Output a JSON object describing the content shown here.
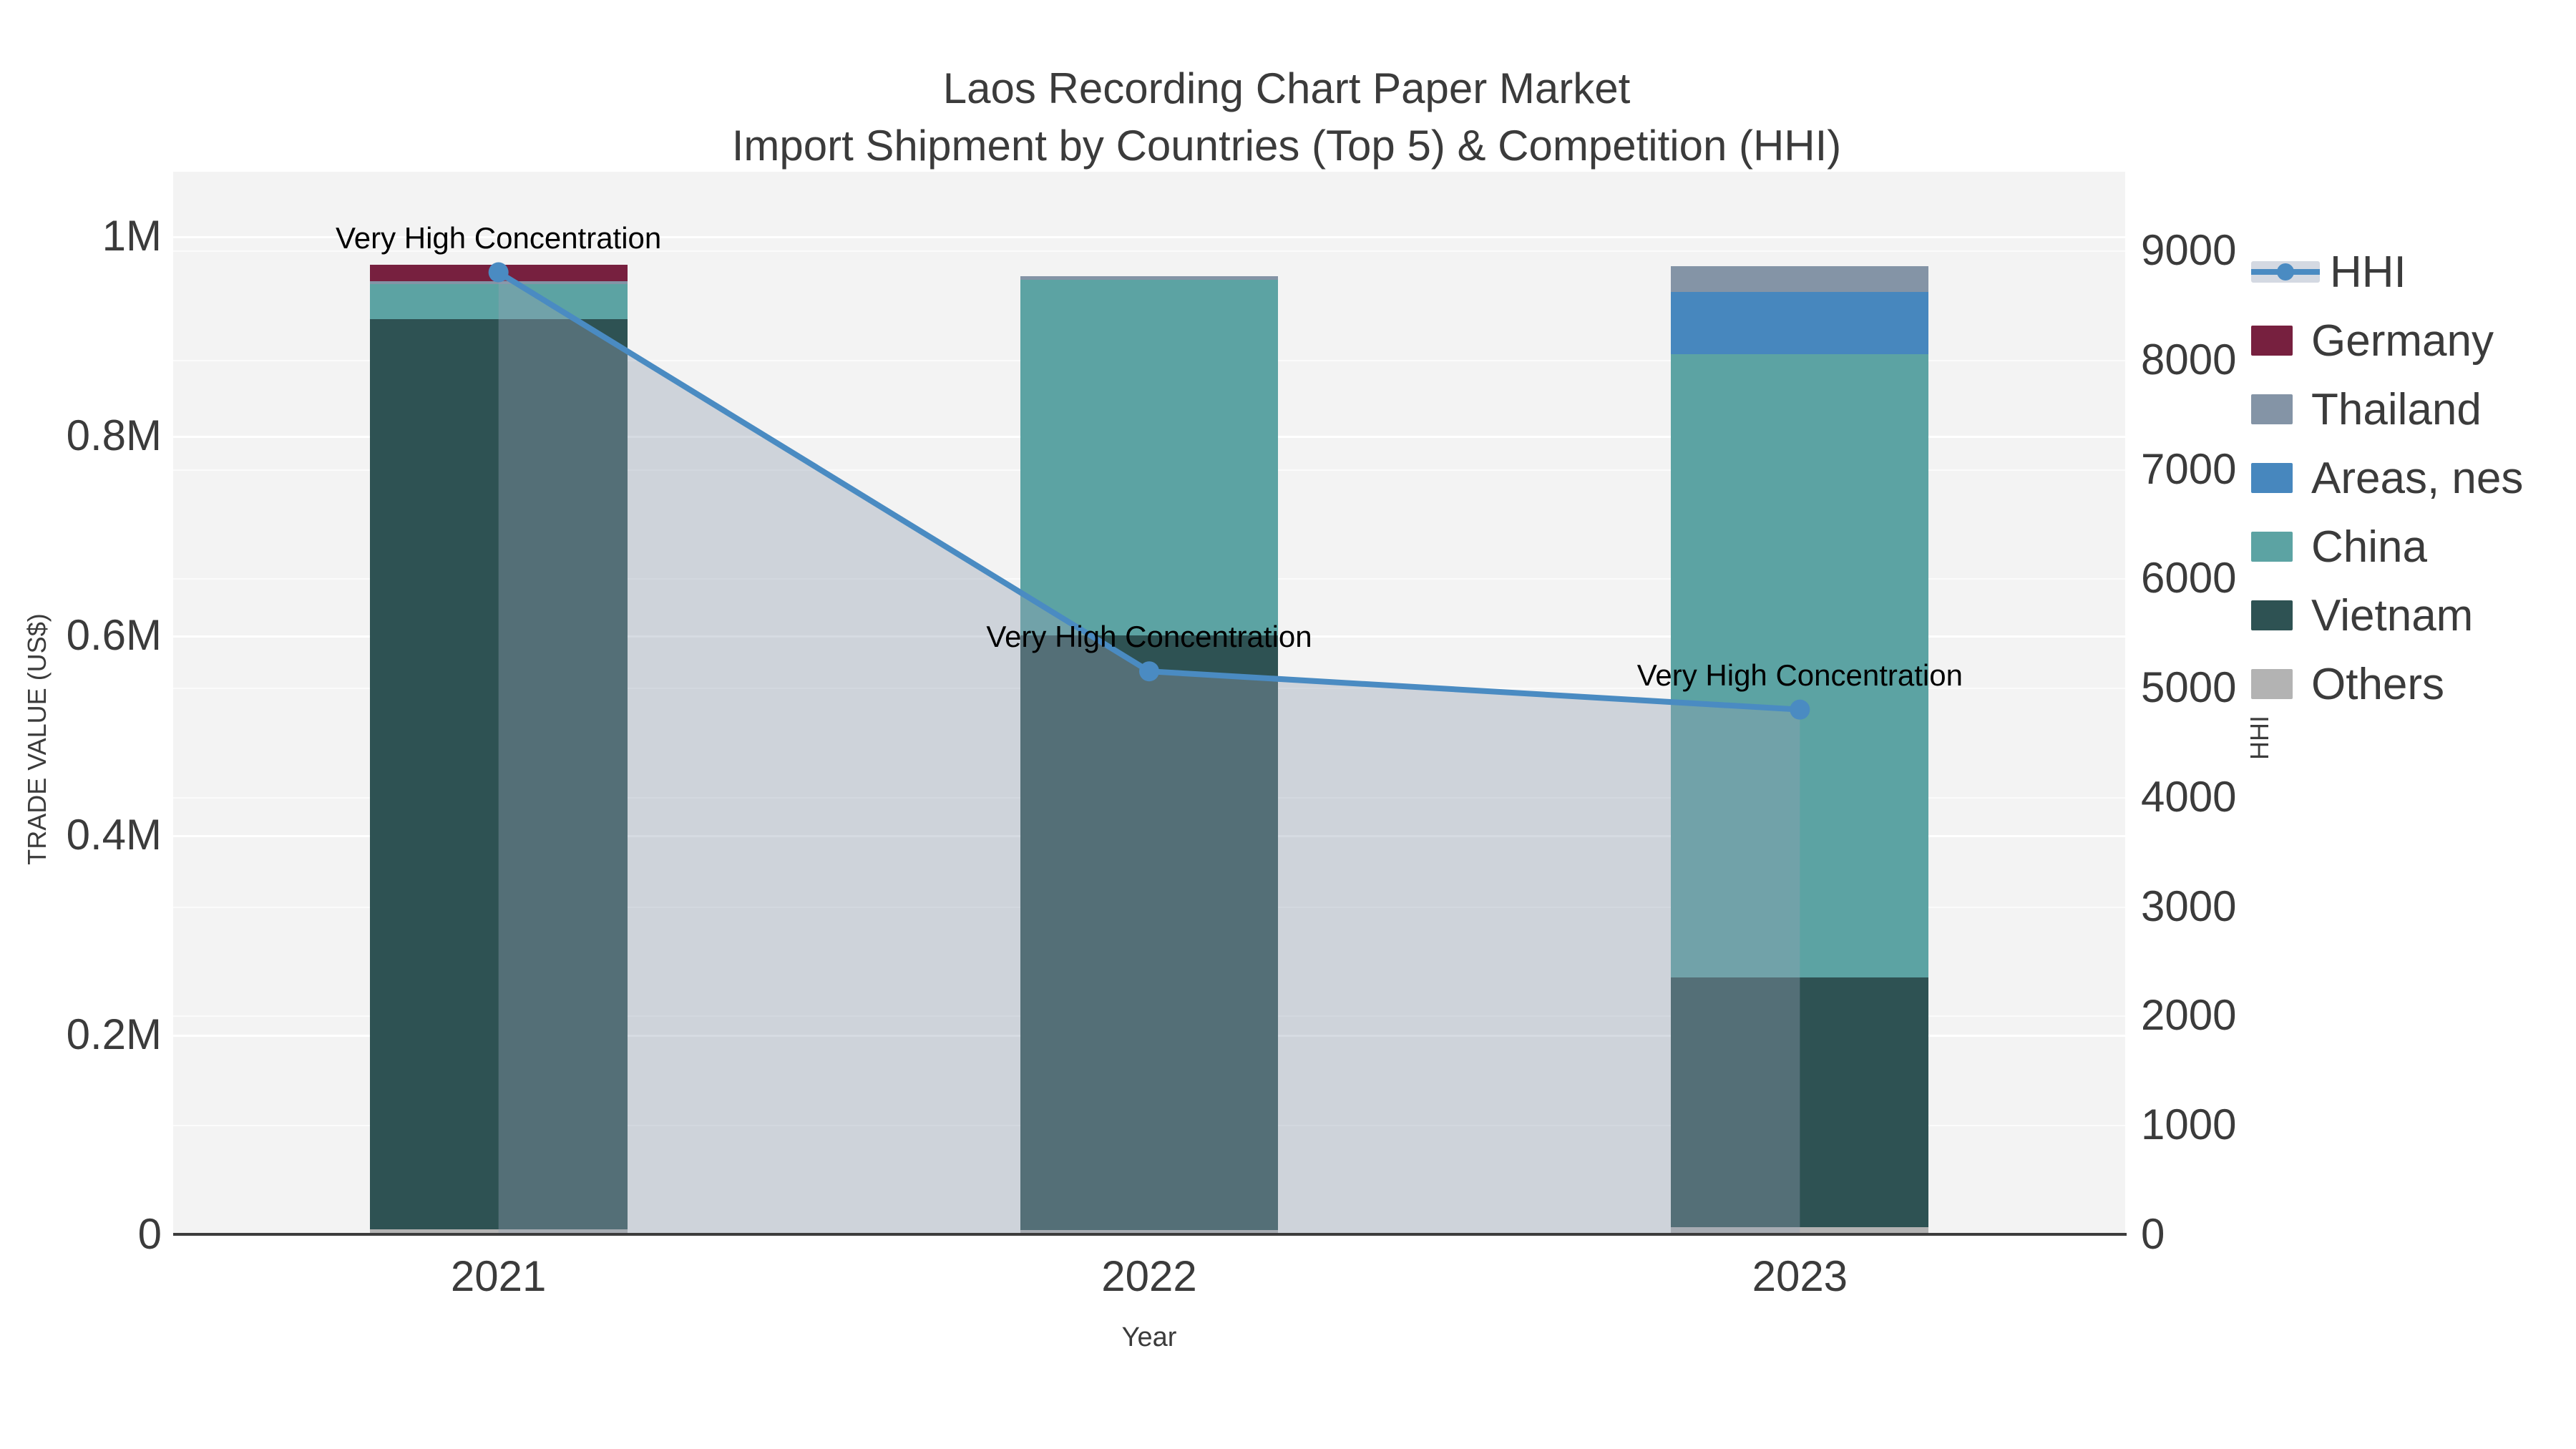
{
  "title": {
    "line1": "Laos Recording Chart Paper Market",
    "line2": "Import Shipment by Countries (Top 5) & Competition (HHI)"
  },
  "chart_data": {
    "type": "combo: stacked-bar + line",
    "categories": [
      "2021",
      "2022",
      "2023"
    ],
    "stack_order_bottom_to_top": [
      "Others",
      "Vietnam",
      "China",
      "Areas, nes",
      "Thailand",
      "Germany"
    ],
    "series": [
      {
        "name": "Others",
        "color": "#b3b3b3",
        "values": [
          5000,
          4000,
          7000
        ]
      },
      {
        "name": "Vietnam",
        "color": "#2e5253",
        "values": [
          912000,
          596000,
          250000
        ]
      },
      {
        "name": "China",
        "color": "#5ca3a3",
        "values": [
          35000,
          356000,
          625000
        ]
      },
      {
        "name": "Areas, nes",
        "color": "#4787be",
        "values": [
          0,
          0,
          62000
        ]
      },
      {
        "name": "Thailand",
        "color": "#8494a6",
        "values": [
          3000,
          4000,
          26000
        ]
      },
      {
        "name": "Germany",
        "color": "#77203f",
        "values": [
          16500,
          0,
          0
        ]
      }
    ],
    "hhi": {
      "name": "HHI",
      "color": "#4a8bc2",
      "area_fill": "rgba(148,160,180,0.38)",
      "values": [
        8800,
        5150,
        4800
      ]
    },
    "annotations": [
      "Very High Concentration",
      "Very High Concentration",
      "Very High Concentration"
    ],
    "left_axis": {
      "title": "TRADE VALUE (US$)",
      "range": [
        0,
        1000000
      ],
      "ticks": [
        {
          "v": 0,
          "label": "0"
        },
        {
          "v": 200000,
          "label": "0.2M"
        },
        {
          "v": 400000,
          "label": "0.4M"
        },
        {
          "v": 600000,
          "label": "0.6M"
        },
        {
          "v": 800000,
          "label": "0.8M"
        },
        {
          "v": 1000000,
          "label": "1M"
        }
      ]
    },
    "right_axis": {
      "title": "HHI",
      "range": [
        0,
        9000
      ],
      "ticks": [
        0,
        1000,
        2000,
        3000,
        4000,
        5000,
        6000,
        7000,
        8000,
        9000
      ]
    },
    "bottom_axis": {
      "title": "Year"
    },
    "grid": true,
    "legend_position": "right"
  },
  "legend": [
    {
      "label": "HHI",
      "type": "line",
      "color": "#4a8bc2"
    },
    {
      "label": "Germany",
      "type": "swatch",
      "color": "#77203f"
    },
    {
      "label": "Thailand",
      "type": "swatch",
      "color": "#8494a6"
    },
    {
      "label": "Areas, nes",
      "type": "swatch",
      "color": "#4787be"
    },
    {
      "label": "China",
      "type": "swatch",
      "color": "#5ca3a3"
    },
    {
      "label": "Vietnam",
      "type": "swatch",
      "color": "#2e5253"
    },
    {
      "label": "Others",
      "type": "swatch",
      "color": "#b3b3b3"
    }
  ],
  "colors": {
    "plot_background": "#f3f3f3",
    "axis_line": "#3c3c3c",
    "text": "#3b3b3b",
    "annotation_text": "#000000"
  }
}
